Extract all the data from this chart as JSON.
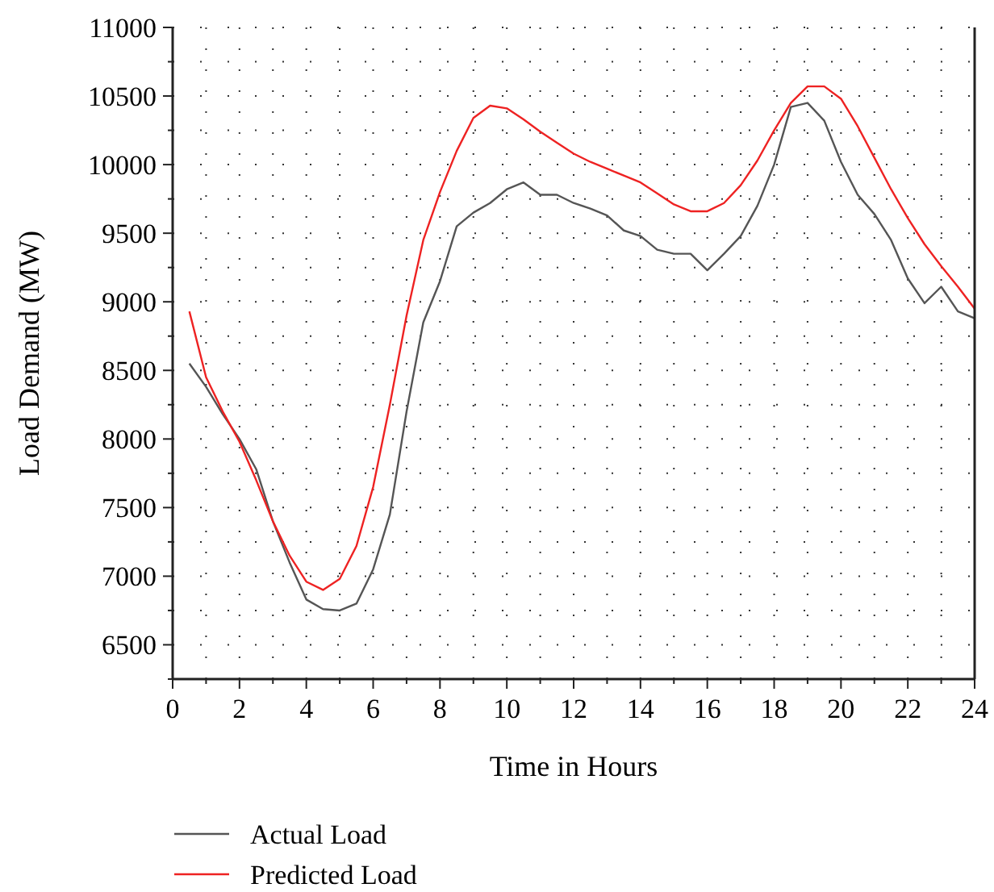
{
  "chart_data": {
    "type": "line",
    "xlabel": "Time in Hours",
    "ylabel": "Load Demand (MW)",
    "x": [
      0.5,
      1,
      1.5,
      2,
      2.5,
      3,
      3.5,
      4,
      4.5,
      5,
      5.5,
      6,
      6.5,
      7,
      7.5,
      8,
      8.5,
      9,
      9.5,
      10,
      10.5,
      11,
      11.5,
      12,
      12.5,
      13,
      13.5,
      14,
      14.5,
      15,
      15.5,
      16,
      16.5,
      17,
      17.5,
      18,
      18.5,
      19,
      19.5,
      20,
      20.5,
      21,
      21.5,
      22,
      22.5,
      23,
      23.5,
      24
    ],
    "series": [
      {
        "name": "Actual Load",
        "color": "#555555",
        "values": [
          8550,
          8380,
          8180,
          8000,
          7780,
          7400,
          7100,
          6830,
          6760,
          6750,
          6800,
          7050,
          7450,
          8200,
          8850,
          9150,
          9550,
          9650,
          9720,
          9820,
          9870,
          9780,
          9780,
          9720,
          9680,
          9630,
          9520,
          9480,
          9380,
          9350,
          9350,
          9230,
          9350,
          9480,
          9700,
          10000,
          10420,
          10450,
          10320,
          10020,
          9780,
          9640,
          9450,
          9170,
          8990,
          9110,
          8930,
          8880
        ]
      },
      {
        "name": "Predicted Load",
        "color": "#ee2222",
        "values": [
          8930,
          8450,
          8200,
          7980,
          7700,
          7400,
          7150,
          6960,
          6900,
          6980,
          7220,
          7650,
          8250,
          8900,
          9450,
          9800,
          10100,
          10340,
          10430,
          10410,
          10330,
          10240,
          10160,
          10080,
          10020,
          9970,
          9920,
          9870,
          9790,
          9710,
          9660,
          9660,
          9720,
          9850,
          10030,
          10250,
          10450,
          10570,
          10570,
          10480,
          10280,
          10050,
          9820,
          9610,
          9420,
          9260,
          9110,
          8950
        ]
      }
    ],
    "xlim": [
      0,
      24
    ],
    "xticks": [
      0,
      2,
      4,
      6,
      8,
      10,
      12,
      14,
      16,
      18,
      20,
      22,
      24
    ],
    "ylim": [
      6250,
      11000
    ],
    "yticks": [
      6500,
      7000,
      7500,
      8000,
      8500,
      9000,
      9500,
      10000,
      10500,
      11000
    ],
    "grid": true,
    "legend": "bottom",
    "marker": "none",
    "line_style": "solid"
  }
}
